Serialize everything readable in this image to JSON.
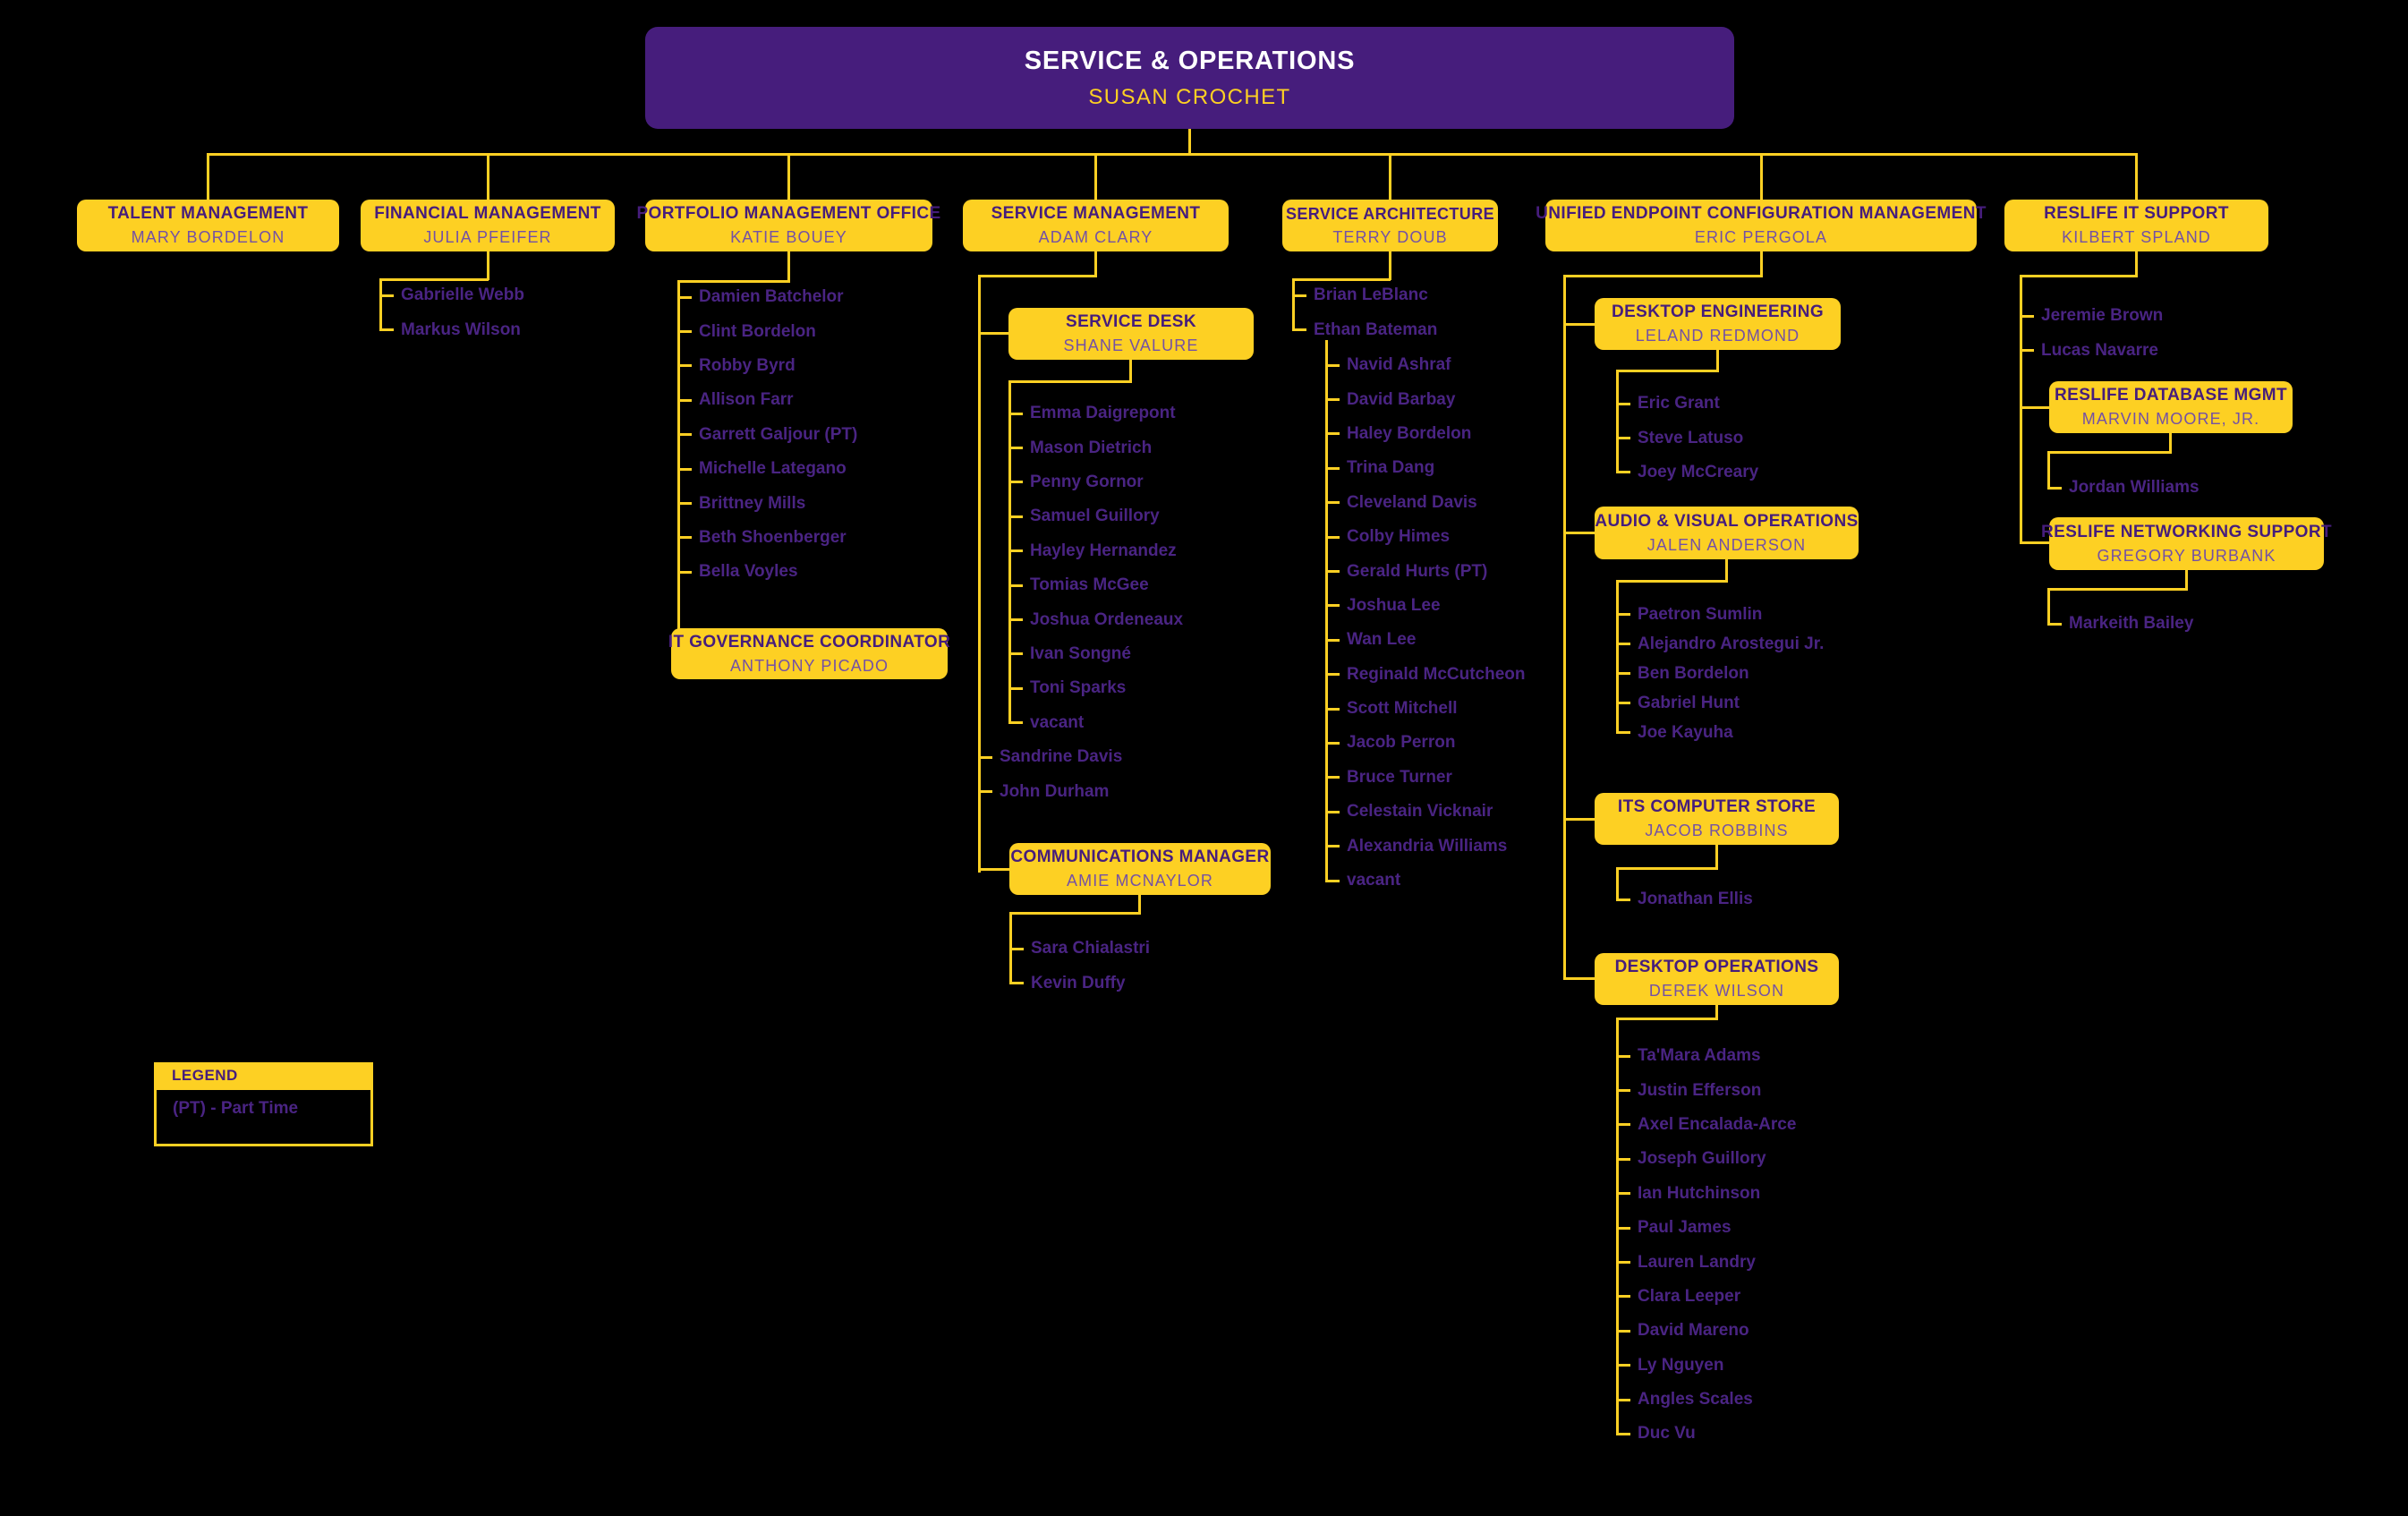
{
  "root": {
    "title": "SERVICE & OPERATIONS",
    "name": "SUSAN CROCHET"
  },
  "departments": {
    "talent": {
      "title": "TALENT MANAGEMENT",
      "name": "MARY BORDELON"
    },
    "financial": {
      "title": "FINANCIAL MANAGEMENT",
      "name": "JULIA PFEIFER",
      "staff": [
        "Gabrielle Webb",
        "Markus Wilson"
      ]
    },
    "portfolio": {
      "title": "PORTFOLIO MANAGEMENT OFFICE",
      "name": "KATIE BOUEY",
      "staff": [
        "Damien Batchelor",
        "Clint Bordelon",
        "Robby Byrd",
        "Allison Farr",
        "Garrett Galjour (PT)",
        "Michelle Lategano",
        "Brittney Mills",
        "Beth Shoenberger",
        "Bella Voyles"
      ],
      "it_governance": {
        "title": "IT GOVERNANCE COORDINATOR",
        "name": "ANTHONY PICADO"
      }
    },
    "service_management": {
      "title": "SERVICE MANAGEMENT",
      "name": "ADAM CLARY",
      "service_desk": {
        "title": "SERVICE DESK",
        "name": "SHANE VALURE",
        "staff": [
          "Emma Daigrepont",
          "Mason Dietrich",
          "Penny Gornor",
          "Samuel Guillory",
          "Hayley Hernandez",
          "Tomias McGee",
          "Joshua Ordeneaux",
          "Ivan Songné",
          "Toni Sparks",
          "vacant"
        ]
      },
      "staff": [
        "Sandrine Davis",
        "John Durham"
      ],
      "communications": {
        "title": "COMMUNICATIONS MANAGER",
        "name": "AMIE MCNAYLOR",
        "staff": [
          "Sara Chialastri",
          "Kevin Duffy"
        ]
      }
    },
    "service_architecture": {
      "title": "SERVICE ARCHITECTURE",
      "name": "TERRY DOUB",
      "staff": [
        "Brian LeBlanc",
        "Ethan Bateman"
      ],
      "bateman_team": [
        "Navid Ashraf",
        "David Barbay",
        "Haley Bordelon",
        "Trina Dang",
        "Cleveland Davis",
        "Colby Himes",
        "Gerald Hurts (PT)",
        "Joshua Lee",
        "Wan Lee",
        "Reginald McCutcheon",
        "Scott Mitchell",
        "Jacob Perron",
        "Bruce Turner",
        "Celestain Vicknair",
        "Alexandria Williams",
        "vacant"
      ]
    },
    "uecm": {
      "title": "UNIFIED ENDPOINT CONFIGURATION MANAGEMENT",
      "name": "ERIC PERGOLA",
      "desktop_engineering": {
        "title": "DESKTOP ENGINEERING",
        "name": "LELAND REDMOND",
        "staff": [
          "Eric Grant",
          "Steve Latuso",
          "Joey McCreary"
        ]
      },
      "av_operations": {
        "title": "AUDIO & VISUAL OPERATIONS",
        "name": "JALEN ANDERSON",
        "staff": [
          "Paetron Sumlin",
          "Alejandro Arostegui Jr.",
          "Ben Bordelon",
          "Gabriel Hunt",
          "Joe Kayuha"
        ]
      },
      "computer_store": {
        "title": "ITS COMPUTER STORE",
        "name": "JACOB ROBBINS",
        "staff": [
          "Jonathan Ellis"
        ]
      },
      "desktop_operations": {
        "title": "DESKTOP OPERATIONS",
        "name": "DEREK WILSON",
        "staff": [
          "Ta'Mara Adams",
          "Justin Efferson",
          "Axel Encalada-Arce",
          "Joseph Guillory",
          "Ian Hutchinson",
          "Paul James",
          "Lauren Landry",
          "Clara Leeper",
          "David Mareno",
          "Ly Nguyen",
          "Angles Scales",
          "Duc Vu"
        ]
      }
    },
    "reslife": {
      "title": "RESLIFE IT SUPPORT",
      "name": "KILBERT SPLAND",
      "staff": [
        "Jeremie Brown",
        "Lucas Navarre"
      ],
      "database_mgmt": {
        "title": "RESLIFE DATABASE MGMT",
        "name": "MARVIN MOORE, JR.",
        "staff": [
          "Jordan Williams"
        ]
      },
      "networking_support": {
        "title": "RESLIFE NETWORKING SUPPORT",
        "name": "GREGORY BURBANK",
        "staff": [
          "Markeith Bailey"
        ]
      }
    }
  },
  "legend": {
    "title": "LEGEND",
    "items": [
      "(PT) - Part Time"
    ]
  },
  "colors": {
    "background": "#000000",
    "purple": "#461D7C",
    "gold": "#FDD023",
    "box_name_text": "#7451A5",
    "person_text": "#4A2483",
    "root_title_text": "#FFFFFF"
  }
}
